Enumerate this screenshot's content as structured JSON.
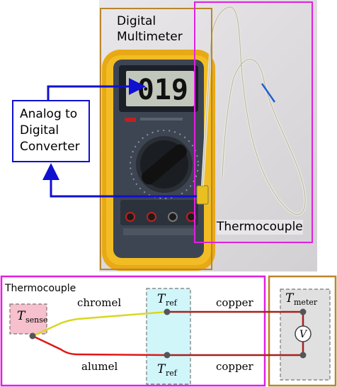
{
  "photo_labels": {
    "multimeter_line1": "Digital",
    "multimeter_line2": "Multimeter",
    "thermocouple": "Thermocouple",
    "display_value": "019"
  },
  "adc": {
    "line1": "Analog to",
    "line2": "Digital",
    "line3": "Converter"
  },
  "diagram": {
    "title": "Thermocouple",
    "t_sense": {
      "symbol": "T",
      "subscript": "sense"
    },
    "t_ref_top": {
      "symbol": "T",
      "subscript": "ref"
    },
    "t_ref_bottom": {
      "symbol": "T",
      "subscript": "ref"
    },
    "t_meter": {
      "symbol": "T",
      "subscript": "meter"
    },
    "wire_chromel": "chromel",
    "wire_alumel": "alumel",
    "wire_copper_top": "copper",
    "wire_copper_bottom": "copper",
    "voltmeter_symbol": "V"
  },
  "colors": {
    "magenta_box": "#e020e0",
    "orange_box": "#b8862c",
    "blue_arrow": "#1010d0",
    "chromel": "#d8d820",
    "alumel": "#e01818",
    "copper": "#a82020",
    "sense_fill": "#f6c0cc",
    "ref_fill": "#d0f6fa",
    "meter_fill": "#e0e0e0"
  }
}
